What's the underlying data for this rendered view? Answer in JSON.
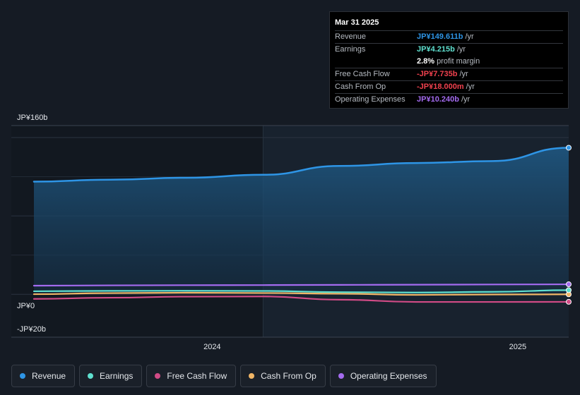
{
  "chart_data": {
    "type": "area",
    "y_unit": "JP¥ billions",
    "ylim": [
      -20,
      160
    ],
    "yticks": [
      {
        "value": 160,
        "label": "JP¥160b"
      },
      {
        "value": 0,
        "label": "JP¥0"
      },
      {
        "value": -20,
        "label": "-JP¥20b"
      }
    ],
    "xlim": [
      "2023-06",
      "2025-06"
    ],
    "xticks": [
      {
        "value": "2024-01",
        "label": "2024"
      },
      {
        "value": "2025-01",
        "label": "2025"
      }
    ],
    "highlight_from": "2024-03",
    "x": [
      "2023-06",
      "2023-09",
      "2023-12",
      "2024-03",
      "2024-06",
      "2024-09",
      "2024-12",
      "2025-03"
    ],
    "series": [
      {
        "name": "Revenue",
        "color": "#2e95e6",
        "fill": true,
        "values": [
          115,
          117,
          119,
          122,
          131,
          134,
          136,
          149.6
        ]
      },
      {
        "name": "Earnings",
        "color": "#5fe0cf",
        "values": [
          3.1,
          3.5,
          3.6,
          3.4,
          2.2,
          1.8,
          2.5,
          4.2
        ]
      },
      {
        "name": "Free Cash Flow",
        "color": "#d14b86",
        "values": [
          -4.7,
          -3.5,
          -2.4,
          -2.2,
          -5.5,
          -7.8,
          -7.8,
          -7.7
        ]
      },
      {
        "name": "Cash From Op",
        "color": "#f0b566",
        "values": [
          0.1,
          1.2,
          1.6,
          1.3,
          0.6,
          -0.6,
          -0.2,
          -0.02
        ]
      },
      {
        "name": "Operating Expenses",
        "color": "#a46bf0",
        "values": [
          8.8,
          9.1,
          9.3,
          9.4,
          9.6,
          9.8,
          10.0,
          10.2
        ]
      }
    ]
  },
  "tooltip": {
    "date": "Mar 31 2025",
    "rows": [
      {
        "label": "Revenue",
        "value": "JP¥149.611b",
        "unit": "/yr",
        "color": "#2e95e6"
      },
      {
        "label": "Earnings",
        "value": "JP¥4.215b",
        "unit": "/yr",
        "color": "#5fe0cf"
      },
      {
        "label": "",
        "value": "2.8%",
        "unit": "profit margin",
        "color": "#ffffff"
      },
      {
        "label": "Free Cash Flow",
        "value": "-JP¥7.735b",
        "unit": "/yr",
        "color": "#f0414e"
      },
      {
        "label": "Cash From Op",
        "value": "-JP¥18.000m",
        "unit": "/yr",
        "color": "#f0414e"
      },
      {
        "label": "Operating Expenses",
        "value": "JP¥10.240b",
        "unit": "/yr",
        "color": "#a46bf0"
      }
    ]
  },
  "legend": [
    {
      "label": "Revenue",
      "color": "#2e95e6"
    },
    {
      "label": "Earnings",
      "color": "#5fe0cf"
    },
    {
      "label": "Free Cash Flow",
      "color": "#d14b86"
    },
    {
      "label": "Cash From Op",
      "color": "#f0b566"
    },
    {
      "label": "Operating Expenses",
      "color": "#a46bf0"
    }
  ]
}
